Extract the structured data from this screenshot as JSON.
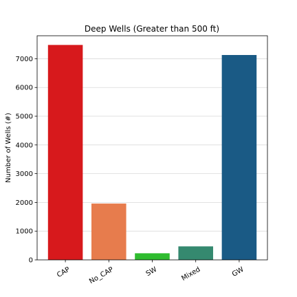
{
  "chart_data": {
    "type": "bar",
    "title": "Deep Wells (Greater than 500 ft)",
    "xlabel": "",
    "ylabel": "Number of Wells (#)",
    "categories": [
      "CAP",
      "No_CAP",
      "SW",
      "Mixed",
      "GW"
    ],
    "values": [
      7480,
      1960,
      230,
      470,
      7130
    ],
    "colors": [
      "#d7191c",
      "#e77c4d",
      "#2fbc2f",
      "#35896f",
      "#1a5a85"
    ],
    "ylim": [
      0,
      7800
    ],
    "yticks": [
      0,
      1000,
      2000,
      3000,
      4000,
      5000,
      6000,
      7000
    ],
    "ytick_labels": [
      "0",
      "1000",
      "2000",
      "3000",
      "4000",
      "5000",
      "6000",
      "7000"
    ],
    "grid": true
  }
}
